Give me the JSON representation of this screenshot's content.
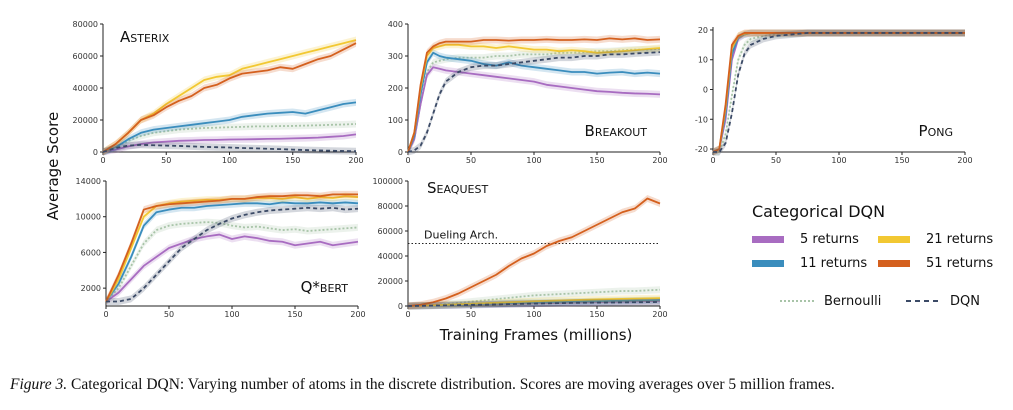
{
  "figure": {
    "y_axis_label": "Average Score",
    "x_axis_label": "Training Frames (millions)",
    "legend": {
      "title": "Categorical DQN",
      "entries": [
        {
          "label": "5 returns",
          "color": "#a86cc1",
          "style": "solid"
        },
        {
          "label": "21 returns",
          "color": "#f2c832",
          "style": "solid"
        },
        {
          "label": "11 returns",
          "color": "#3a8dbd",
          "style": "solid"
        },
        {
          "label": "51 returns",
          "color": "#d4601e",
          "style": "solid"
        },
        {
          "label": "Bernoulli",
          "color": "#a8c4a8",
          "style": "dotted"
        },
        {
          "label": "DQN",
          "color": "#3b4a66",
          "style": "dashed"
        }
      ]
    },
    "caption_label": "Figure 3.",
    "caption_text": " Categorical DQN: Varying number of atoms in the discrete distribution. Scores are moving averages over 5 million frames."
  },
  "chart_data": [
    {
      "type": "line",
      "title": "Asterix",
      "xlim": [
        0,
        200
      ],
      "ylim": [
        0,
        80000
      ],
      "xticks": [
        "0",
        "50",
        "100",
        "150",
        "200"
      ],
      "yticks": [
        "0",
        "20000",
        "40000",
        "60000",
        "80000"
      ],
      "x": [
        0,
        10,
        20,
        30,
        40,
        50,
        60,
        70,
        80,
        90,
        100,
        110,
        120,
        130,
        140,
        150,
        160,
        170,
        180,
        190,
        200
      ],
      "series": [
        {
          "name": "5 returns",
          "color": "#a86cc1",
          "values": [
            0,
            1500,
            3500,
            5000,
            6000,
            6500,
            7000,
            7200,
            7500,
            7600,
            7800,
            7900,
            8000,
            8200,
            8300,
            8500,
            8700,
            9000,
            9500,
            10000,
            11000
          ]
        },
        {
          "name": "11 returns",
          "color": "#3a8dbd",
          "values": [
            0,
            3000,
            8000,
            12000,
            14000,
            15000,
            16000,
            17000,
            18000,
            19000,
            20000,
            22000,
            23000,
            24000,
            24500,
            25000,
            24000,
            26000,
            28000,
            30000,
            31000
          ]
        },
        {
          "name": "21 returns",
          "color": "#f2c832",
          "values": [
            0,
            5000,
            12000,
            20000,
            24000,
            30000,
            35000,
            40000,
            45000,
            47000,
            48000,
            52000,
            54000,
            56000,
            58000,
            60000,
            62000,
            64000,
            66000,
            68000,
            70000
          ]
        },
        {
          "name": "51 returns",
          "color": "#d4601e",
          "values": [
            0,
            5000,
            12000,
            20000,
            23000,
            28000,
            32000,
            35000,
            40000,
            42000,
            46000,
            49000,
            50000,
            51000,
            53000,
            52000,
            55000,
            58000,
            60000,
            64000,
            68000
          ]
        },
        {
          "name": "Bernoulli",
          "color": "#a8c4a8",
          "values": [
            0,
            3000,
            7000,
            10000,
            12000,
            13000,
            14000,
            14500,
            15000,
            15200,
            15500,
            15700,
            16000,
            16000,
            16200,
            16300,
            16500,
            16700,
            17000,
            17200,
            17500
          ]
        },
        {
          "name": "DQN",
          "color": "#3b4a66",
          "values": [
            0,
            2500,
            4000,
            4500,
            4200,
            4000,
            3800,
            3500,
            3200,
            3000,
            2800,
            2500,
            2300,
            2000,
            1800,
            1500,
            1200,
            1000,
            800,
            600,
            500
          ]
        }
      ]
    },
    {
      "type": "line",
      "title": "Breakout",
      "xlim": [
        0,
        200
      ],
      "ylim": [
        0,
        400
      ],
      "xticks": [
        "0",
        "50",
        "100",
        "150",
        "200"
      ],
      "yticks": [
        "0",
        "100",
        "200",
        "300",
        "400"
      ],
      "x": [
        0,
        5,
        10,
        15,
        20,
        25,
        30,
        40,
        50,
        60,
        70,
        80,
        90,
        100,
        110,
        120,
        130,
        140,
        150,
        160,
        170,
        180,
        190,
        200
      ],
      "series": [
        {
          "name": "5 returns",
          "color": "#a86cc1",
          "values": [
            0,
            40,
            150,
            240,
            265,
            260,
            255,
            250,
            245,
            240,
            235,
            230,
            225,
            220,
            210,
            205,
            200,
            195,
            190,
            188,
            185,
            183,
            182,
            180
          ]
        },
        {
          "name": "11 returns",
          "color": "#3a8dbd",
          "values": [
            0,
            50,
            180,
            280,
            310,
            300,
            295,
            290,
            285,
            275,
            270,
            280,
            270,
            265,
            260,
            255,
            250,
            250,
            245,
            248,
            250,
            245,
            248,
            245
          ]
        },
        {
          "name": "21 returns",
          "color": "#f2c832",
          "values": [
            0,
            60,
            200,
            300,
            325,
            330,
            335,
            335,
            330,
            330,
            325,
            330,
            325,
            320,
            320,
            315,
            318,
            315,
            310,
            312,
            315,
            318,
            322,
            325
          ]
        },
        {
          "name": "51 returns",
          "color": "#d4601e",
          "values": [
            0,
            60,
            210,
            310,
            330,
            340,
            345,
            345,
            345,
            350,
            350,
            348,
            350,
            350,
            352,
            350,
            350,
            352,
            350,
            355,
            352,
            355,
            350,
            352
          ]
        },
        {
          "name": "Bernoulli",
          "color": "#a8c4a8",
          "values": [
            0,
            40,
            150,
            250,
            280,
            285,
            290,
            295,
            295,
            295,
            300,
            300,
            305,
            305,
            305,
            310,
            310,
            312,
            315,
            315,
            318,
            320,
            320,
            322
          ]
        },
        {
          "name": "DQN",
          "color": "#3b4a66",
          "values": [
            0,
            5,
            20,
            60,
            120,
            180,
            220,
            250,
            265,
            270,
            270,
            275,
            280,
            285,
            290,
            295,
            295,
            300,
            300,
            305,
            305,
            308,
            310,
            312
          ]
        }
      ]
    },
    {
      "type": "line",
      "title": "Pong",
      "xlim": [
        0,
        200
      ],
      "ylim": [
        -21,
        21
      ],
      "xticks": [
        "0",
        "50",
        "100",
        "150",
        "200"
      ],
      "yticks": [
        "-20",
        "-10",
        "0",
        "10",
        "20"
      ],
      "x": [
        0,
        5,
        10,
        15,
        20,
        25,
        30,
        40,
        50,
        75,
        100,
        150,
        200
      ],
      "series": [
        {
          "name": "5 returns",
          "color": "#a86cc1",
          "values": [
            -21,
            -20,
            -10,
            10,
            17,
            18.5,
            19,
            19,
            19,
            19,
            19,
            19,
            19
          ]
        },
        {
          "name": "11 returns",
          "color": "#3a8dbd",
          "values": [
            -21,
            -20,
            -8,
            12,
            17.5,
            18.5,
            19,
            19,
            19,
            19,
            19,
            19,
            19
          ]
        },
        {
          "name": "21 returns",
          "color": "#f2c832",
          "values": [
            -21,
            -20,
            -6,
            14,
            18,
            18.8,
            19,
            19,
            19,
            19,
            19,
            19,
            19
          ]
        },
        {
          "name": "51 returns",
          "color": "#d4601e",
          "values": [
            -21,
            -20,
            -5,
            15,
            18,
            19,
            19,
            19,
            19,
            19,
            19,
            19,
            19
          ]
        },
        {
          "name": "Bernoulli",
          "color": "#a8c4a8",
          "values": [
            -21,
            -21,
            -15,
            -2,
            10,
            15,
            17,
            18,
            18.5,
            19,
            19,
            19,
            19
          ]
        },
        {
          "name": "DQN",
          "color": "#3b4a66",
          "values": [
            -21,
            -21,
            -18,
            -8,
            5,
            12,
            15,
            17,
            18,
            19,
            19,
            19,
            19
          ]
        }
      ]
    },
    {
      "type": "line",
      "title": "Q*bert",
      "xlim": [
        0,
        200
      ],
      "ylim": [
        0,
        14000
      ],
      "xticks": [
        "0",
        "50",
        "100",
        "150",
        "200"
      ],
      "yticks": [
        "2000",
        "6000",
        "10000",
        "14000"
      ],
      "x": [
        0,
        10,
        20,
        30,
        40,
        50,
        60,
        70,
        80,
        90,
        100,
        110,
        120,
        130,
        140,
        150,
        160,
        170,
        180,
        190,
        200
      ],
      "series": [
        {
          "name": "5 returns",
          "color": "#a86cc1",
          "values": [
            500,
            1500,
            3000,
            4500,
            5500,
            6500,
            7000,
            7500,
            7800,
            8000,
            7500,
            7800,
            7600,
            7300,
            7200,
            6800,
            7000,
            7200,
            6800,
            7000,
            7200
          ]
        },
        {
          "name": "11 returns",
          "color": "#3a8dbd",
          "values": [
            500,
            2500,
            5500,
            9000,
            10500,
            10800,
            11000,
            11000,
            11200,
            11300,
            11400,
            11500,
            11500,
            11400,
            11600,
            11500,
            11500,
            11600,
            11500,
            11600,
            11500
          ]
        },
        {
          "name": "21 returns",
          "color": "#f2c832",
          "values": [
            500,
            3000,
            6500,
            10000,
            11200,
            11500,
            11700,
            11800,
            11900,
            11900,
            12000,
            12000,
            12100,
            12100,
            12000,
            12200,
            12000,
            12200,
            12100,
            12300,
            12200
          ]
        },
        {
          "name": "51 returns",
          "color": "#d4601e",
          "values": [
            500,
            3500,
            7000,
            10800,
            11200,
            11400,
            11500,
            11600,
            11700,
            11800,
            12000,
            12000,
            12200,
            12300,
            12300,
            12400,
            12400,
            12300,
            12500,
            12500,
            12500
          ]
        },
        {
          "name": "Bernoulli",
          "color": "#a8c4a8",
          "values": [
            500,
            2000,
            4500,
            7000,
            8500,
            9000,
            9200,
            9300,
            9400,
            9300,
            9000,
            8800,
            8900,
            8700,
            8500,
            8600,
            8400,
            8500,
            8600,
            8700,
            8800
          ]
        },
        {
          "name": "DQN",
          "color": "#3b4a66",
          "values": [
            500,
            500,
            800,
            2000,
            3500,
            5000,
            6500,
            7500,
            8500,
            9200,
            9800,
            10200,
            10500,
            10700,
            10800,
            10900,
            11000,
            10900,
            11000,
            10800,
            10900
          ]
        }
      ]
    },
    {
      "type": "line",
      "title": "Seaquest",
      "xlim": [
        0,
        200
      ],
      "ylim": [
        0,
        100000
      ],
      "xticks": [
        "0",
        "50",
        "100",
        "150",
        "200"
      ],
      "yticks": [
        "0",
        "20000",
        "40000",
        "60000",
        "80000",
        "100000"
      ],
      "annotations": [
        {
          "text": "Dueling Arch.",
          "y": 50000,
          "style": "dotted"
        }
      ],
      "x": [
        0,
        10,
        20,
        30,
        40,
        50,
        60,
        70,
        80,
        90,
        100,
        110,
        120,
        130,
        140,
        150,
        160,
        170,
        180,
        190,
        200
      ],
      "series": [
        {
          "name": "5 returns",
          "color": "#a86cc1",
          "values": [
            0,
            200,
            400,
            600,
            800,
            1000,
            1200,
            1400,
            1600,
            1800,
            2000,
            2200,
            2400,
            2600,
            2800,
            3000,
            3200,
            3400,
            3600,
            3800,
            4000
          ]
        },
        {
          "name": "11 returns",
          "color": "#3a8dbd",
          "values": [
            0,
            200,
            400,
            700,
            1000,
            1300,
            1600,
            1900,
            2200,
            2500,
            2800,
            3000,
            3200,
            3400,
            3600,
            3800,
            4000,
            4200,
            4400,
            4600,
            4800
          ]
        },
        {
          "name": "21 returns",
          "color": "#f2c832",
          "values": [
            0,
            300,
            600,
            1000,
            1400,
            1800,
            2200,
            2600,
            3000,
            3400,
            3800,
            4100,
            4400,
            4700,
            5000,
            5300,
            5500,
            5700,
            5900,
            6100,
            6300
          ]
        },
        {
          "name": "51 returns",
          "color": "#d4601e",
          "values": [
            0,
            1000,
            3000,
            6000,
            10000,
            15000,
            20000,
            25000,
            32000,
            38000,
            42000,
            48000,
            52000,
            55000,
            60000,
            65000,
            70000,
            75000,
            78000,
            86000,
            82000
          ]
        },
        {
          "name": "Bernoulli",
          "color": "#a8c4a8",
          "values": [
            0,
            300,
            800,
            1500,
            2500,
            3500,
            4500,
            5500,
            6500,
            7500,
            8500,
            9000,
            9500,
            10000,
            10500,
            11000,
            11500,
            12000,
            12000,
            12500,
            13000
          ]
        },
        {
          "name": "DQN",
          "color": "#3b4a66",
          "values": [
            0,
            100,
            300,
            500,
            700,
            900,
            1100,
            1300,
            1500,
            1700,
            1900,
            2100,
            2300,
            2500,
            2600,
            2700,
            2800,
            2900,
            3000,
            3100,
            3200
          ]
        }
      ]
    }
  ]
}
